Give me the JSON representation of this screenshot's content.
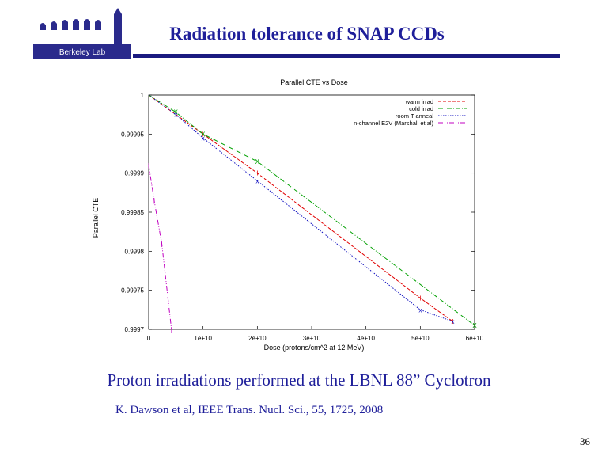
{
  "slide": {
    "title": "Radiation tolerance of SNAP CCDs",
    "caption": "Proton irradiations performed at the LBNL 88” Cyclotron",
    "reference": "K. Dawson et al, IEEE Trans. Nucl. Sci., 55, 1725, 2008",
    "page_number": "36",
    "logo_text": "Berkeley Lab",
    "accent_color": "#1f1f9a"
  },
  "chart_data": {
    "type": "line",
    "title": "Parallel CTE vs Dose",
    "xlabel": "Dose (protons/cm^2 at 12 MeV)",
    "ylabel": "Parallel CTE",
    "xlim": [
      0,
      60000000000.0
    ],
    "ylim": [
      0.9997,
      1
    ],
    "x_ticks": [
      "0",
      "1e+10",
      "2e+10",
      "3e+10",
      "4e+10",
      "5e+10",
      "6e+10"
    ],
    "y_ticks": [
      "1",
      "0.99995",
      "0.9999",
      "0.99985",
      "0.9998",
      "0.99975",
      "0.9997"
    ],
    "legend_position": "top-right",
    "grid": false,
    "series": [
      {
        "name": "warm irrad",
        "color": "#e00000",
        "style": "dashed",
        "x": [
          0,
          10000000000.0,
          20000000000.0,
          50000000000.0,
          56000000000.0
        ],
        "y": [
          1,
          0.99995,
          0.9999,
          0.99974,
          0.99971
        ]
      },
      {
        "name": "cold irrad",
        "color": "#00a000",
        "style": "dashdot",
        "x": [
          0,
          5000000000.0,
          10000000000.0,
          20000000000.0,
          60000000000.0
        ],
        "y": [
          1,
          0.999978,
          0.99995,
          0.999915,
          0.999705
        ]
      },
      {
        "name": "room T anneal",
        "color": "#1010c0",
        "style": "dotted",
        "x": [
          0,
          5000000000.0,
          10000000000.0,
          20000000000.0,
          50000000000.0,
          56000000000.0
        ],
        "y": [
          1,
          0.999975,
          0.999945,
          0.99989,
          0.999725,
          0.99971
        ]
      },
      {
        "name": "n-channel E2V (Marshall et al)",
        "color": "#c000c0",
        "style": "dashdotdot",
        "x": [
          0,
          1000000000.0,
          2400000000.0,
          4200000000.0
        ],
        "y": [
          0.99991,
          0.999865,
          0.99981,
          0.9997
        ]
      }
    ]
  }
}
